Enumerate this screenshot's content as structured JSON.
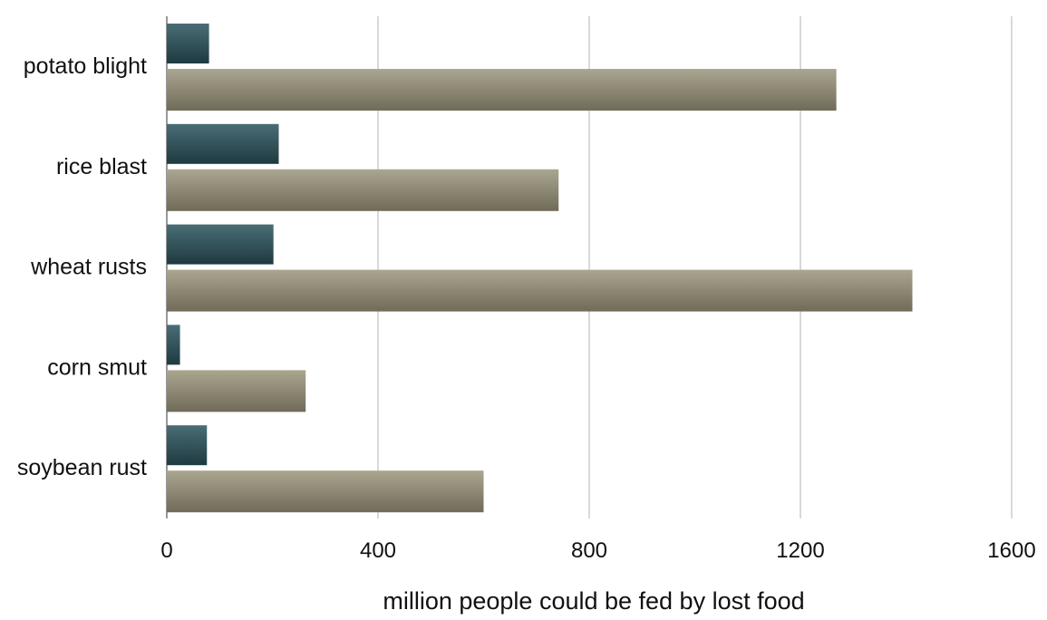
{
  "chart_data": {
    "type": "bar",
    "orientation": "horizontal",
    "categories": [
      "potato blight",
      "rice blast",
      "wheat rusts",
      "corn smut",
      "soybean rust"
    ],
    "series": [
      {
        "values": [
          80,
          212,
          202,
          25,
          76
        ],
        "color": "#2c4c54"
      },
      {
        "values": [
          1268,
          742,
          1412,
          263,
          600
        ],
        "color": "#8a8672"
      }
    ],
    "xlabel": "million people could be fed by lost food",
    "ylabel": "",
    "xlim": [
      0,
      1600
    ],
    "x_ticks": [
      "0",
      "400",
      "800",
      "1200",
      "1600"
    ],
    "grid": "vertical",
    "legend": "none"
  }
}
